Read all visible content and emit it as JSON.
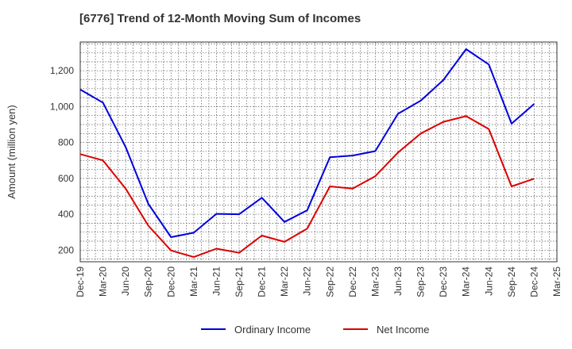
{
  "title": "[6776]  Trend of 12-Month Moving Sum of Incomes",
  "chart_data": {
    "type": "line",
    "title": "[6776]  Trend of 12-Month Moving Sum of Incomes",
    "xlabel": "",
    "ylabel": "Amount (million yen)",
    "x_ticks": [
      "Dec-19",
      "Mar-20",
      "Jun-20",
      "Sep-20",
      "Dec-20",
      "Mar-21",
      "Jun-21",
      "Sep-21",
      "Dec-21",
      "Mar-22",
      "Jun-22",
      "Sep-22",
      "Dec-22",
      "Mar-23",
      "Jun-23",
      "Sep-23",
      "Dec-23",
      "Mar-24",
      "Jun-24",
      "Sep-24",
      "Dec-24",
      "Mar-25"
    ],
    "x": [
      "Dec-19",
      "Mar-20",
      "Jun-20",
      "Sep-20",
      "Dec-20",
      "Mar-21",
      "Jun-21",
      "Sep-21",
      "Dec-21",
      "Mar-22",
      "Jun-22",
      "Sep-22",
      "Dec-22",
      "Mar-23",
      "Jun-23",
      "Sep-23",
      "Dec-23",
      "Mar-24",
      "Jun-24",
      "Sep-24",
      "Dec-24"
    ],
    "y_ticks": [
      200,
      400,
      600,
      800,
      1000,
      1200
    ],
    "y_tick_labels": [
      "200",
      "400",
      "600",
      "800",
      "1,000",
      "1,200"
    ],
    "ylim": [
      135,
      1360
    ],
    "grid": true,
    "legend_position": "bottom",
    "series": [
      {
        "name": "Ordinary Income",
        "color": "#0000dd",
        "values": [
          1095,
          1022,
          775,
          458,
          272,
          297,
          402,
          400,
          492,
          357,
          422,
          718,
          727,
          752,
          960,
          1033,
          1148,
          1320,
          1235,
          905,
          1015
        ]
      },
      {
        "name": "Net Income",
        "color": "#dd0000",
        "values": [
          735,
          700,
          543,
          336,
          198,
          161,
          208,
          185,
          281,
          246,
          320,
          555,
          543,
          612,
          744,
          850,
          915,
          947,
          875,
          555,
          598
        ]
      }
    ]
  }
}
